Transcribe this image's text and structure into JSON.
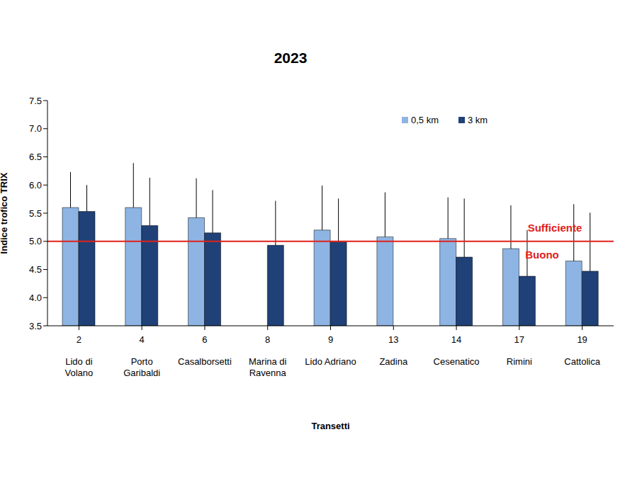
{
  "chart_data": {
    "type": "bar",
    "title": "2023",
    "x_label": "Transetti",
    "y_label": "Indice trofico TRIX",
    "categories": [
      "2",
      "4",
      "6",
      "8",
      "9",
      "13",
      "14",
      "17",
      "19"
    ],
    "transect_names": [
      "Lido di Volano",
      "Porto Garibaldi",
      "Casalborsetti",
      "Marina di Ravenna",
      "Lido Adriano",
      "Zadina",
      "Cesenatico",
      "Rimini",
      "Cattolica"
    ],
    "series": [
      {
        "name": "0,5 km",
        "color": "#8eb4e3",
        "values": [
          5.6,
          5.6,
          5.42,
          null,
          5.2,
          5.08,
          5.05,
          4.87,
          4.65
        ],
        "errors": [
          0.63,
          0.79,
          0.7,
          null,
          0.79,
          0.79,
          0.73,
          0.77,
          1.01
        ]
      },
      {
        "name": "3 km",
        "color": "#1f4177",
        "values": [
          5.53,
          5.28,
          5.15,
          4.93,
          4.99,
          null,
          4.72,
          4.38,
          4.47
        ],
        "errors": [
          0.47,
          0.85,
          0.76,
          0.79,
          0.77,
          null,
          1.04,
          0.82,
          1.04
        ]
      }
    ],
    "ylim": [
      3.5,
      7.5
    ],
    "yticks": [
      3.5,
      {
        "value": 4,
        "label": "4.0"
      },
      4.5,
      {
        "value": 5,
        "label": "5.0"
      },
      5.5,
      {
        "value": 6,
        "label": "6.0"
      },
      6.5,
      {
        "value": 7,
        "label": "7.0"
      },
      7.5
    ],
    "threshold": 5,
    "threshold_color": "#e0201b",
    "annotations": [
      "Sufficiente",
      "Buono"
    ],
    "grid": false,
    "legend": "top right"
  }
}
